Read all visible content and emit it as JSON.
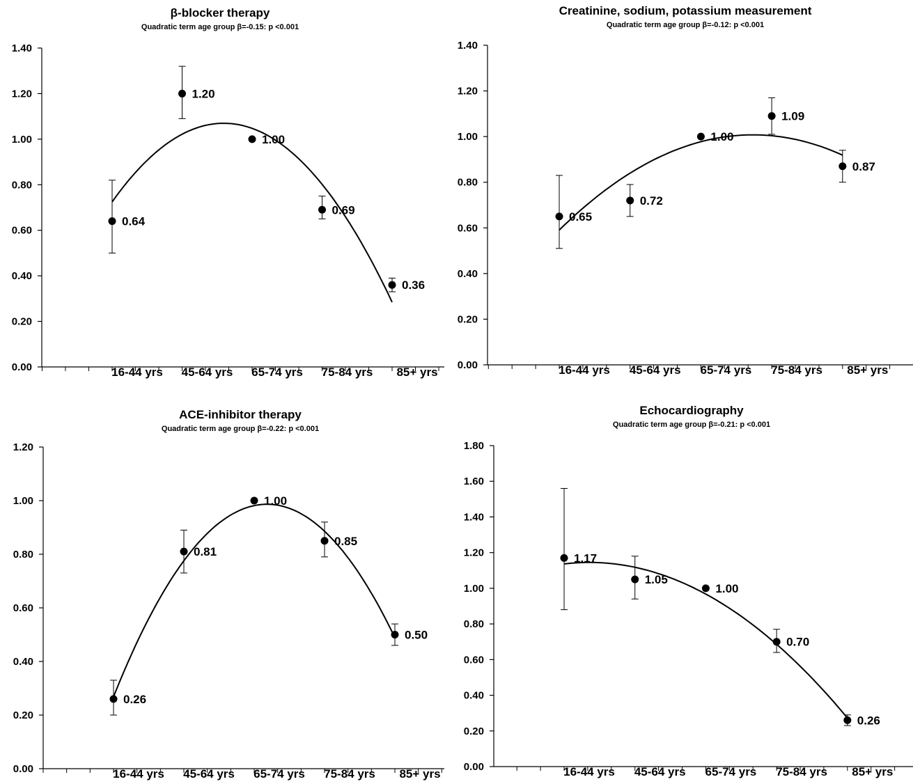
{
  "chart_data": [
    {
      "type": "scatter",
      "title": "β-blocker therapy",
      "subtitle": "Quadratic term age group β=-0.15: p <0.001",
      "categories": [
        "16-44 yrs",
        "45-64 yrs",
        "65-74 yrs",
        "75-84 yrs",
        "85+ yrs"
      ],
      "values": [
        0.64,
        1.2,
        1.0,
        0.69,
        0.36
      ],
      "value_labels": [
        "0.64",
        "1.20",
        "1.00",
        "0.69",
        "0.36"
      ],
      "error_low": [
        0.5,
        1.09,
        1.0,
        0.65,
        0.33
      ],
      "error_high": [
        0.82,
        1.32,
        1.0,
        0.75,
        0.39
      ],
      "fit_curve": [
        0.72,
        1.03,
        1.05,
        0.79,
        0.29
      ],
      "yticks": [
        "0.00",
        "0.20",
        "0.40",
        "0.60",
        "0.80",
        "1.00",
        "1.20",
        "1.40"
      ],
      "ylim": [
        0,
        1.4
      ],
      "xlabel": "",
      "ylabel": "",
      "grid": false
    },
    {
      "type": "scatter",
      "title": "Creatinine, sodium, potassium measurement",
      "subtitle": "Quadratic term age group β=-0.12: p <0.001",
      "categories": [
        "16-44 yrs",
        "45-64 yrs",
        "65-74 yrs",
        "75-84 yrs",
        "85+ yrs"
      ],
      "values": [
        0.65,
        0.72,
        1.0,
        1.09,
        0.87
      ],
      "value_labels": [
        "0.65",
        "0.72",
        "1.00",
        "1.09",
        "0.87"
      ],
      "error_low": [
        0.51,
        0.65,
        1.0,
        1.01,
        0.8
      ],
      "error_high": [
        0.83,
        0.79,
        1.0,
        1.17,
        0.94
      ],
      "fit_curve": [
        0.59,
        0.84,
        0.98,
        1.0,
        0.92
      ],
      "yticks": [
        "0.00",
        "0.20",
        "0.40",
        "0.60",
        "0.80",
        "1.00",
        "1.20",
        "1.40"
      ],
      "ylim": [
        0,
        1.4
      ],
      "xlabel": "",
      "ylabel": "",
      "grid": false
    },
    {
      "type": "scatter",
      "title": "ACE-inhibitor therapy",
      "subtitle": "Quadratic term age group β=-0.22: p <0.001",
      "categories": [
        "16-44 yrs",
        "45-64 yrs",
        "65-74 yrs",
        "75-84 yrs",
        "85+ yrs"
      ],
      "values": [
        0.26,
        0.81,
        1.0,
        0.85,
        0.5
      ],
      "value_labels": [
        "0.26",
        "0.81",
        "1.00",
        "0.85",
        "0.50"
      ],
      "error_low": [
        0.2,
        0.73,
        1.0,
        0.79,
        0.46
      ],
      "error_high": [
        0.33,
        0.89,
        1.0,
        0.92,
        0.54
      ],
      "fit_curve": [
        0.26,
        0.79,
        0.99,
        0.86,
        0.5
      ],
      "yticks": [
        "0.00",
        "0.20",
        "0.40",
        "0.60",
        "0.80",
        "1.00",
        "1.20"
      ],
      "ylim": [
        0,
        1.2
      ],
      "xlabel": "",
      "ylabel": "",
      "grid": false
    },
    {
      "type": "scatter",
      "title": "Echocardiography",
      "subtitle": "Quadratic term age group β=-0.21: p <0.001",
      "categories": [
        "16-44 yrs",
        "45-64 yrs",
        "65-74 yrs",
        "75-84 yrs",
        "85+ yrs"
      ],
      "values": [
        1.17,
        1.05,
        1.0,
        0.7,
        0.26
      ],
      "value_labels": [
        "1.17",
        "1.05",
        "1.00",
        "0.70",
        "0.26"
      ],
      "error_low": [
        0.88,
        0.94,
        1.0,
        0.64,
        0.23
      ],
      "error_high": [
        1.56,
        1.18,
        1.0,
        0.77,
        0.29
      ],
      "fit_curve": [
        1.14,
        1.11,
        0.97,
        0.69,
        0.27
      ],
      "yticks": [
        "0.00",
        "0.20",
        "0.40",
        "0.60",
        "0.80",
        "1.00",
        "1.20",
        "1.40",
        "1.60",
        "1.80"
      ],
      "ylim": [
        0,
        1.8
      ],
      "xlabel": "",
      "ylabel": "",
      "grid": false
    }
  ]
}
